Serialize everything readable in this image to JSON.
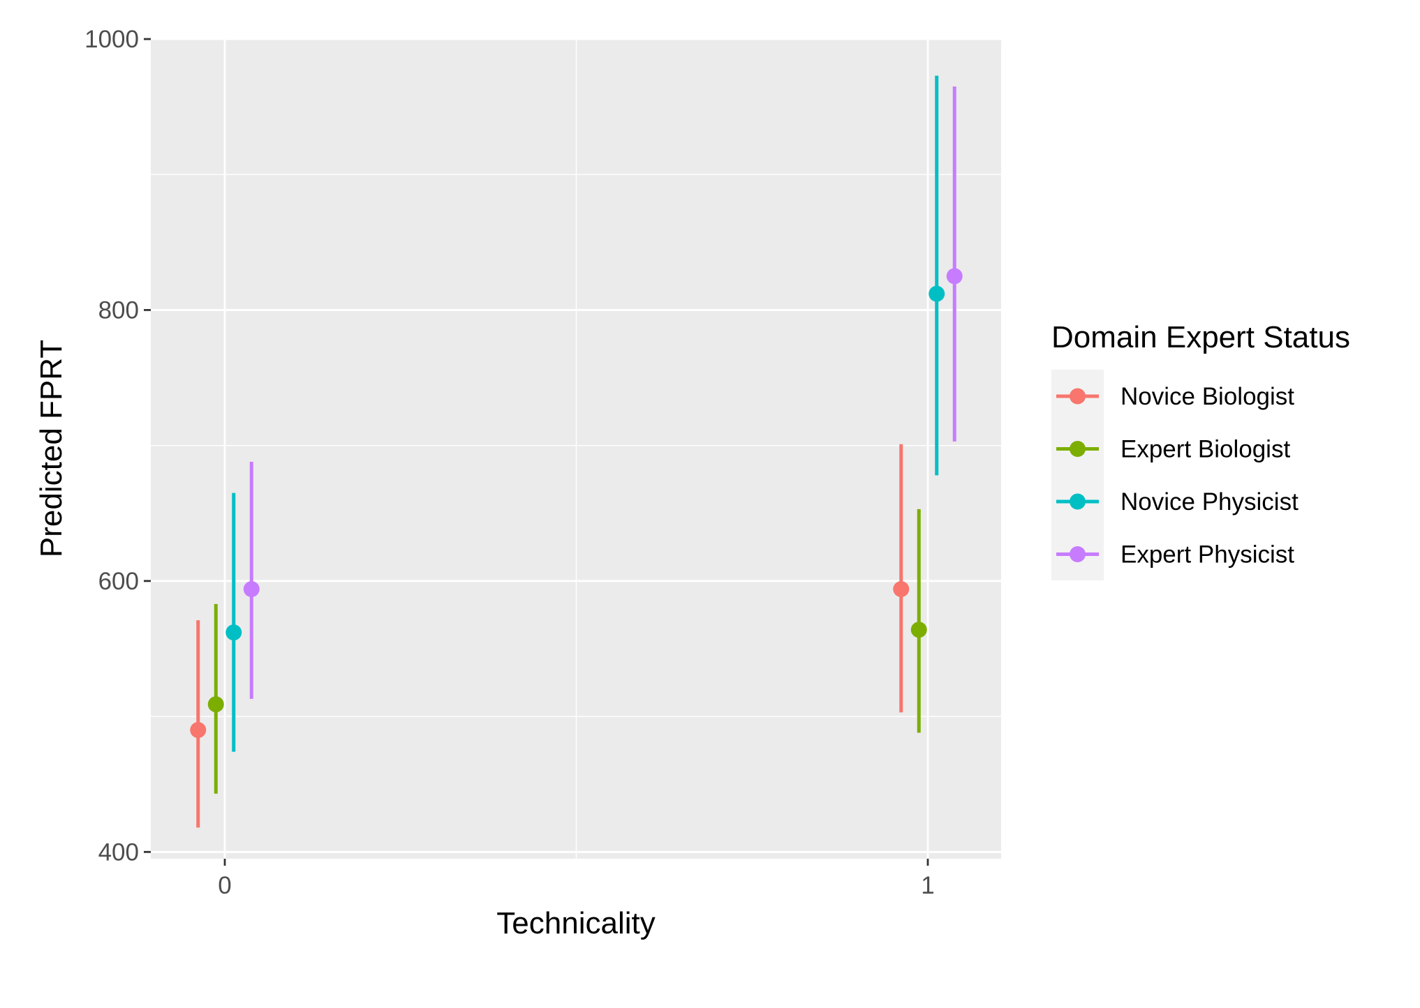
{
  "chart_data": {
    "type": "pointrange",
    "title": "",
    "xlabel": "Technicality",
    "ylabel": "Predicted FPRT",
    "x_categories": [
      "0",
      "1"
    ],
    "ylim": [
      395,
      1000
    ],
    "y_ticks": [
      400,
      600,
      800,
      1000
    ],
    "y_tick_labels": [
      "400",
      "600",
      "800",
      "1000"
    ],
    "grid": true,
    "legend": {
      "title": "Domain Expert Status",
      "position": "right"
    },
    "series": [
      {
        "name": "Novice Biologist",
        "color": "#F8766D",
        "points": [
          {
            "x": "0",
            "y": 490,
            "ymin": 418,
            "ymax": 571
          },
          {
            "x": "1",
            "y": 594,
            "ymin": 503,
            "ymax": 701
          }
        ]
      },
      {
        "name": "Expert Biologist",
        "color": "#7CAE00",
        "points": [
          {
            "x": "0",
            "y": 509,
            "ymin": 443,
            "ymax": 583
          },
          {
            "x": "1",
            "y": 564,
            "ymin": 488,
            "ymax": 653
          }
        ]
      },
      {
        "name": "Novice Physicist",
        "color": "#00BFC4",
        "points": [
          {
            "x": "0",
            "y": 562,
            "ymin": 474,
            "ymax": 665
          },
          {
            "x": "1",
            "y": 812,
            "ymin": 678,
            "ymax": 973
          }
        ]
      },
      {
        "name": "Expert Physicist",
        "color": "#C77CFF",
        "points": [
          {
            "x": "0",
            "y": 594,
            "ymin": 513,
            "ymax": 688
          },
          {
            "x": "1",
            "y": 825,
            "ymin": 703,
            "ymax": 965
          }
        ]
      }
    ]
  }
}
